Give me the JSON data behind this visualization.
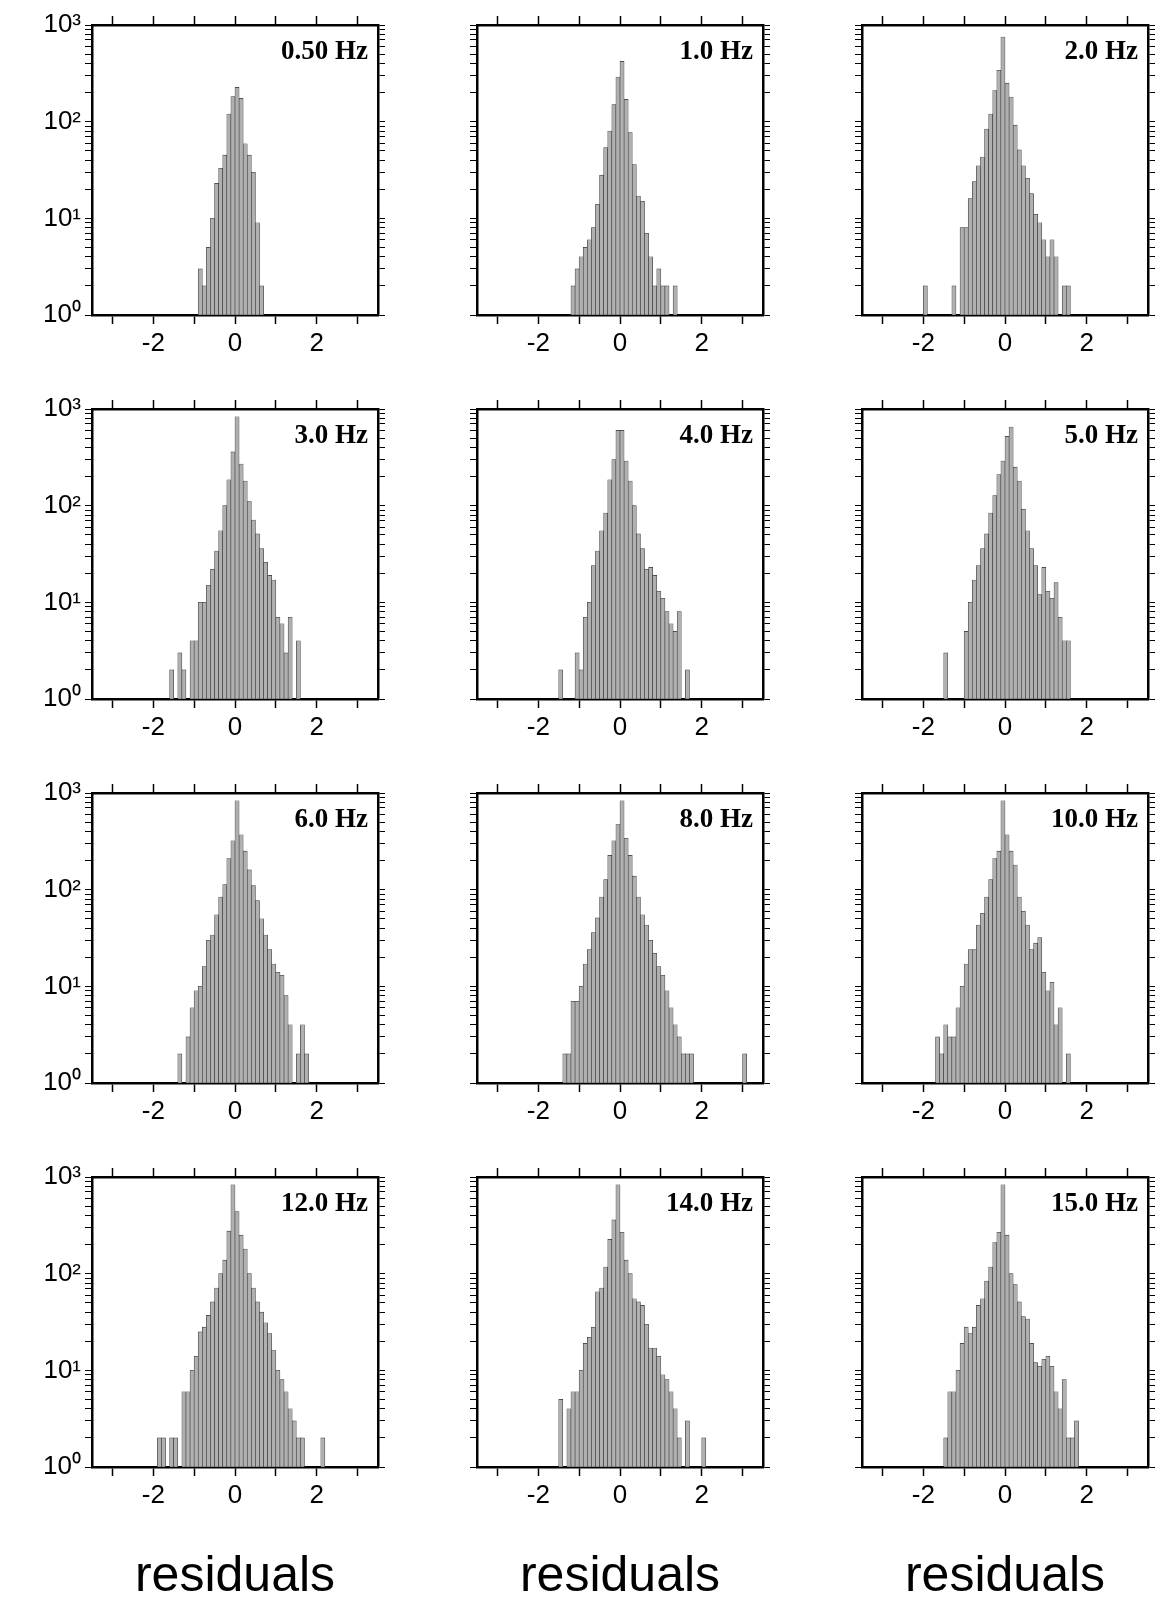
{
  "chart_data": [
    {
      "type": "histogram",
      "title": "0.50 Hz",
      "color": "#b0b0b0",
      "log": true,
      "xlim": [
        -3.5,
        3.5
      ],
      "ylim": [
        1,
        1000
      ],
      "xticks": [
        {
          "value": -3,
          "label": null
        },
        -2,
        {
          "value": -1,
          "label": null
        },
        0,
        {
          "value": 1,
          "label": null
        },
        2,
        {
          "value": 3,
          "label": null
        }
      ],
      "yticks": [
        {
          "value": 1,
          "label": "10⁰"
        },
        {
          "value": 2,
          "label": null
        },
        {
          "value": 3,
          "label": null
        },
        {
          "value": 4,
          "label": null
        },
        {
          "value": 5,
          "label": null
        },
        {
          "value": 6,
          "label": null
        },
        {
          "value": 7,
          "label": null
        },
        {
          "value": 8,
          "label": null
        },
        {
          "value": 9,
          "label": null
        },
        {
          "value": 10,
          "label": "10¹"
        },
        {
          "value": 20,
          "label": null
        },
        {
          "value": 30,
          "label": null
        },
        {
          "value": 40,
          "label": null
        },
        {
          "value": 50,
          "label": null
        },
        {
          "value": 60,
          "label": null
        },
        {
          "value": 70,
          "label": null
        },
        {
          "value": 80,
          "label": null
        },
        {
          "value": 90,
          "label": null
        },
        {
          "value": 100,
          "label": "10²"
        },
        {
          "value": 200,
          "label": null
        },
        {
          "value": 300,
          "label": null
        },
        {
          "value": 400,
          "label": null
        },
        {
          "value": 500,
          "label": null
        },
        {
          "value": 600,
          "label": null
        },
        {
          "value": 700,
          "label": null
        },
        {
          "value": 800,
          "label": null
        },
        {
          "value": 900,
          "label": null
        },
        {
          "value": 1000,
          "label": "10³"
        }
      ],
      "bins": [
        -0.9,
        -0.8,
        -0.7,
        -0.6,
        -0.5,
        -0.4,
        -0.3,
        -0.2,
        -0.1,
        0,
        0.1,
        0.2,
        0.3,
        0.4,
        0.5,
        0.6,
        0.7
      ],
      "values": [
        3,
        2,
        5,
        10,
        23,
        33,
        45,
        120,
        182,
        226,
        174,
        59,
        45,
        30,
        9,
        2
      ]
    },
    {
      "type": "histogram",
      "title": "1.0 Hz",
      "tick_labels": "x",
      "color": "#b0b0b0",
      "log": true,
      "xlim": [
        -3.5,
        3.5
      ],
      "ylim": [
        1,
        1000
      ],
      "xticks": [
        {
          "value": -3,
          "label": null
        },
        -2,
        {
          "value": -1,
          "label": null
        },
        0,
        {
          "value": 1,
          "label": null
        },
        2,
        {
          "value": 3,
          "label": null
        }
      ],
      "yticks": [
        1,
        2,
        3,
        4,
        5,
        6,
        7,
        8,
        9,
        10,
        20,
        30,
        40,
        50,
        60,
        70,
        80,
        90,
        100,
        200,
        300,
        400,
        500,
        600,
        700,
        800,
        900,
        1000
      ],
      "bins": [
        -1.2,
        -1.1,
        -1.0,
        -0.9,
        -0.8,
        -0.7,
        -0.6,
        -0.5,
        -0.4,
        -0.3,
        -0.2,
        -0.1,
        0,
        0.1,
        0.2,
        0.3,
        0.4,
        0.5,
        0.6,
        0.7,
        0.8,
        0.9,
        1.0,
        1.1,
        1.2,
        1.3,
        1.4
      ],
      "values": [
        2,
        3,
        4,
        5,
        6,
        8,
        14,
        28,
        54,
        80,
        150,
        290,
        420,
        170,
        77,
        36,
        17,
        15,
        7,
        4,
        2,
        3,
        2,
        2,
        null,
        2
      ]
    },
    {
      "type": "histogram",
      "title": "2.0 Hz",
      "tick_labels": "x",
      "color": "#b0b0b0",
      "log": true,
      "xlim": [
        -3.5,
        3.5
      ],
      "ylim": [
        1,
        1000
      ],
      "xticks": [
        {
          "value": -3,
          "label": null
        },
        -2,
        {
          "value": -1,
          "label": null
        },
        0,
        {
          "value": 1,
          "label": null
        },
        2,
        {
          "value": 3,
          "label": null
        }
      ],
      "yticks": [
        1,
        2,
        3,
        4,
        5,
        6,
        7,
        8,
        9,
        10,
        20,
        30,
        40,
        50,
        60,
        70,
        80,
        90,
        100,
        200,
        300,
        400,
        500,
        600,
        700,
        800,
        900,
        1000
      ],
      "bins": [
        -2.0,
        -1.9,
        -1.8,
        -1.7,
        -1.6,
        -1.5,
        -1.4,
        -1.3,
        -1.2,
        -1.1,
        -1.0,
        -0.9,
        -0.8,
        -0.7,
        -0.6,
        -0.5,
        -0.4,
        -0.3,
        -0.2,
        -0.1,
        0,
        0.1,
        0.2,
        0.3,
        0.4,
        0.5,
        0.6,
        0.7,
        0.8,
        0.9,
        1.0,
        1.1,
        1.2,
        1.3,
        1.4,
        1.5,
        1.6
      ],
      "values": [
        2,
        null,
        null,
        null,
        null,
        null,
        null,
        2,
        null,
        8,
        8,
        16,
        24,
        35,
        43,
        84,
        120,
        210,
        340,
        750,
        250,
        180,
        92,
        51,
        35,
        26,
        18,
        11,
        9,
        6,
        4,
        6,
        4,
        null,
        2,
        2
      ]
    },
    {
      "type": "histogram",
      "title": "3.0 Hz",
      "color": "#b0b0b0",
      "log": true,
      "xlim": [
        -3.5,
        3.5
      ],
      "ylim": [
        1,
        1000
      ],
      "xticks": [
        {
          "value": -3,
          "label": null
        },
        -2,
        {
          "value": -1,
          "label": null
        },
        0,
        {
          "value": 1,
          "label": null
        },
        2,
        {
          "value": 3,
          "label": null
        }
      ],
      "yticks": [
        {
          "value": 1,
          "label": "10⁰"
        },
        {
          "value": 2,
          "label": null
        },
        {
          "value": 3,
          "label": null
        },
        {
          "value": 4,
          "label": null
        },
        {
          "value": 5,
          "label": null
        },
        {
          "value": 6,
          "label": null
        },
        {
          "value": 7,
          "label": null
        },
        {
          "value": 8,
          "label": null
        },
        {
          "value": 9,
          "label": null
        },
        {
          "value": 10,
          "label": "10¹"
        },
        {
          "value": 20,
          "label": null
        },
        {
          "value": 30,
          "label": null
        },
        {
          "value": 40,
          "label": null
        },
        {
          "value": 50,
          "label": null
        },
        {
          "value": 60,
          "label": null
        },
        {
          "value": 70,
          "label": null
        },
        {
          "value": 80,
          "label": null
        },
        {
          "value": 90,
          "label": null
        },
        {
          "value": 100,
          "label": "10²"
        },
        {
          "value": 200,
          "label": null
        },
        {
          "value": 300,
          "label": null
        },
        {
          "value": 400,
          "label": null
        },
        {
          "value": 500,
          "label": null
        },
        {
          "value": 600,
          "label": null
        },
        {
          "value": 700,
          "label": null
        },
        {
          "value": 800,
          "label": null
        },
        {
          "value": 900,
          "label": null
        },
        {
          "value": 1000,
          "label": "10³"
        }
      ],
      "bins": [
        -1.6,
        -1.5,
        -1.4,
        -1.3,
        -1.2,
        -1.1,
        -1.0,
        -0.9,
        -0.8,
        -0.7,
        -0.6,
        -0.5,
        -0.4,
        -0.3,
        -0.2,
        -0.1,
        0,
        0.1,
        0.2,
        0.3,
        0.4,
        0.5,
        0.6,
        0.7,
        0.8,
        0.9,
        1.0,
        1.1,
        1.2,
        1.3,
        1.4,
        1.5,
        1.6
      ],
      "values": [
        2,
        null,
        3,
        2,
        null,
        4,
        4,
        10,
        10,
        15,
        22,
        34,
        55,
        100,
        185,
        360,
        830,
        270,
        180,
        110,
        71,
        51,
        36,
        26,
        19,
        17,
        7,
        6,
        3,
        7,
        null,
        4
      ]
    },
    {
      "type": "histogram",
      "title": "4.0 Hz",
      "tick_labels": "x",
      "color": "#b0b0b0",
      "log": true,
      "xlim": [
        -3.5,
        3.5
      ],
      "ylim": [
        1,
        1000
      ],
      "xticks": [
        {
          "value": -3,
          "label": null
        },
        -2,
        {
          "value": -1,
          "label": null
        },
        0,
        {
          "value": 1,
          "label": null
        },
        2,
        {
          "value": 3,
          "label": null
        }
      ],
      "yticks": [
        1,
        2,
        3,
        4,
        5,
        6,
        7,
        8,
        9,
        10,
        20,
        30,
        40,
        50,
        60,
        70,
        80,
        90,
        100,
        200,
        300,
        400,
        500,
        600,
        700,
        800,
        900,
        1000
      ],
      "bins": [
        -1.5,
        -1.4,
        -1.3,
        -1.2,
        -1.1,
        -1.0,
        -0.9,
        -0.8,
        -0.7,
        -0.6,
        -0.5,
        -0.4,
        -0.3,
        -0.2,
        -0.1,
        0,
        0.1,
        0.2,
        0.3,
        0.4,
        0.5,
        0.6,
        0.7,
        0.8,
        0.9,
        1.0,
        1.1,
        1.2,
        1.3,
        1.4,
        1.5,
        1.6,
        1.7
      ],
      "values": [
        2,
        null,
        null,
        null,
        3,
        2,
        7,
        10,
        24,
        34,
        55,
        84,
        185,
        300,
        600,
        600,
        290,
        180,
        100,
        51,
        36,
        22,
        23,
        19,
        13,
        11,
        8,
        6,
        5,
        8,
        null,
        2
      ]
    },
    {
      "type": "histogram",
      "title": "5.0 Hz",
      "tick_labels": "x",
      "color": "#b0b0b0",
      "log": true,
      "xlim": [
        -3.5,
        3.5
      ],
      "ylim": [
        1,
        1000
      ],
      "xticks": [
        {
          "value": -3,
          "label": null
        },
        -2,
        {
          "value": -1,
          "label": null
        },
        0,
        {
          "value": 1,
          "label": null
        },
        2,
        {
          "value": 3,
          "label": null
        }
      ],
      "yticks": [
        1,
        2,
        3,
        4,
        5,
        6,
        7,
        8,
        9,
        10,
        20,
        30,
        40,
        50,
        60,
        70,
        80,
        90,
        100,
        200,
        300,
        400,
        500,
        600,
        700,
        800,
        900,
        1000
      ],
      "bins": [
        -1.5,
        -1.4,
        -1.3,
        -1.2,
        -1.1,
        -1.0,
        -0.9,
        -0.8,
        -0.7,
        -0.6,
        -0.5,
        -0.4,
        -0.3,
        -0.2,
        -0.1,
        0,
        0.1,
        0.2,
        0.3,
        0.4,
        0.5,
        0.6,
        0.7,
        0.8,
        0.9,
        1.0,
        1.1,
        1.2,
        1.3,
        1.4,
        1.5,
        1.6
      ],
      "values": [
        3,
        null,
        null,
        null,
        null,
        5,
        10,
        17,
        24,
        36,
        51,
        84,
        127,
        210,
        290,
        520,
        650,
        250,
        180,
        92,
        55,
        36,
        24,
        12,
        23,
        13,
        11,
        16,
        7,
        4,
        4
      ]
    },
    {
      "type": "histogram",
      "title": "6.0 Hz",
      "color": "#b0b0b0",
      "log": true,
      "xlim": [
        -3.5,
        3.5
      ],
      "ylim": [
        1,
        1000
      ],
      "xticks": [
        {
          "value": -3,
          "label": null
        },
        -2,
        {
          "value": -1,
          "label": null
        },
        0,
        {
          "value": 1,
          "label": null
        },
        2,
        {
          "value": 3,
          "label": null
        }
      ],
      "yticks": [
        {
          "value": 1,
          "label": "10⁰"
        },
        {
          "value": 2,
          "label": null
        },
        {
          "value": 3,
          "label": null
        },
        {
          "value": 4,
          "label": null
        },
        {
          "value": 5,
          "label": null
        },
        {
          "value": 6,
          "label": null
        },
        {
          "value": 7,
          "label": null
        },
        {
          "value": 8,
          "label": null
        },
        {
          "value": 9,
          "label": null
        },
        {
          "value": 10,
          "label": "10¹"
        },
        {
          "value": 20,
          "label": null
        },
        {
          "value": 30,
          "label": null
        },
        {
          "value": 40,
          "label": null
        },
        {
          "value": 50,
          "label": null
        },
        {
          "value": 60,
          "label": null
        },
        {
          "value": 70,
          "label": null
        },
        {
          "value": 80,
          "label": null
        },
        {
          "value": 90,
          "label": null
        },
        {
          "value": 100,
          "label": "10²"
        },
        {
          "value": 200,
          "label": null
        },
        {
          "value": 300,
          "label": null
        },
        {
          "value": 400,
          "label": null
        },
        {
          "value": 500,
          "label": null
        },
        {
          "value": 600,
          "label": null
        },
        {
          "value": 700,
          "label": null
        },
        {
          "value": 800,
          "label": null
        },
        {
          "value": 900,
          "label": null
        },
        {
          "value": 1000,
          "label": "10³"
        }
      ],
      "bins": [
        -1.4,
        -1.3,
        -1.2,
        -1.1,
        -1.0,
        -0.9,
        -0.8,
        -0.7,
        -0.6,
        -0.5,
        -0.4,
        -0.3,
        -0.2,
        -0.1,
        0,
        0.1,
        0.2,
        0.3,
        0.4,
        0.5,
        0.6,
        0.7,
        0.8,
        0.9,
        1.0,
        1.1,
        1.2,
        1.3,
        1.4,
        1.5,
        1.6,
        1.7,
        1.8
      ],
      "values": [
        2,
        null,
        3,
        6,
        9,
        10,
        16,
        30,
        34,
        55,
        84,
        113,
        210,
        320,
        830,
        370,
        250,
        160,
        110,
        77,
        50,
        34,
        24,
        17,
        14,
        13,
        8,
        4,
        null,
        2,
        4,
        2
      ]
    },
    {
      "type": "histogram",
      "title": "8.0 Hz",
      "tick_labels": "x",
      "color": "#b0b0b0",
      "log": true,
      "xlim": [
        -3.5,
        3.5
      ],
      "ylim": [
        1,
        1000
      ],
      "xticks": [
        {
          "value": -3,
          "label": null
        },
        -2,
        {
          "value": -1,
          "label": null
        },
        0,
        {
          "value": 1,
          "label": null
        },
        2,
        {
          "value": 3,
          "label": null
        }
      ],
      "yticks": [
        1,
        2,
        3,
        4,
        5,
        6,
        7,
        8,
        9,
        10,
        20,
        30,
        40,
        50,
        60,
        70,
        80,
        90,
        100,
        200,
        300,
        400,
        500,
        600,
        700,
        800,
        900,
        1000
      ],
      "bins": [
        -1.4,
        -1.3,
        -1.2,
        -1.1,
        -1.0,
        -0.9,
        -0.8,
        -0.7,
        -0.6,
        -0.5,
        -0.4,
        -0.3,
        -0.2,
        -0.1,
        0,
        0.1,
        0.2,
        0.3,
        0.4,
        0.5,
        0.6,
        0.7,
        0.8,
        0.9,
        1.0,
        1.1,
        1.2,
        1.3,
        1.4,
        1.5,
        1.6,
        1.7,
        1.8,
        1.9,
        2.0,
        2.1,
        2.2,
        2.3,
        2.4,
        2.5,
        2.6,
        2.7,
        2.8,
        2.9,
        3.0,
        3.1
      ],
      "values": [
        2,
        2,
        7,
        7,
        10,
        17,
        24,
        36,
        51,
        84,
        127,
        226,
        320,
        470,
        830,
        340,
        226,
        138,
        84,
        55,
        43,
        30,
        22,
        16,
        13,
        9,
        6,
        4,
        3,
        2,
        2,
        2,
        null,
        null,
        null,
        null,
        null,
        null,
        null,
        null,
        null,
        null,
        null,
        null,
        2
      ]
    },
    {
      "type": "histogram",
      "title": "10.0 Hz",
      "tick_labels": "x",
      "color": "#b0b0b0",
      "log": true,
      "xlim": [
        -3.5,
        3.5
      ],
      "ylim": [
        1,
        1000
      ],
      "xticks": [
        {
          "value": -3,
          "label": null
        },
        -2,
        {
          "value": -1,
          "label": null
        },
        0,
        {
          "value": 1,
          "label": null
        },
        2,
        {
          "value": 3,
          "label": null
        }
      ],
      "yticks": [
        1,
        2,
        3,
        4,
        5,
        6,
        7,
        8,
        9,
        10,
        20,
        30,
        40,
        50,
        60,
        70,
        80,
        90,
        100,
        200,
        300,
        400,
        500,
        600,
        700,
        800,
        900,
        1000
      ],
      "bins": [
        -1.7,
        -1.6,
        -1.5,
        -1.4,
        -1.3,
        -1.2,
        -1.1,
        -1.0,
        -0.9,
        -0.8,
        -0.7,
        -0.6,
        -0.5,
        -0.4,
        -0.3,
        -0.2,
        -0.1,
        0,
        0.1,
        0.2,
        0.3,
        0.4,
        0.5,
        0.6,
        0.7,
        0.8,
        0.9,
        1.0,
        1.1,
        1.2,
        1.3,
        1.4,
        1.5,
        1.6
      ],
      "values": [
        3,
        2,
        4,
        3,
        3,
        6,
        10,
        17,
        24,
        24,
        43,
        57,
        84,
        127,
        210,
        250,
        830,
        370,
        250,
        180,
        84,
        60,
        43,
        24,
        28,
        32,
        14,
        9,
        11,
        4,
        6,
        null,
        2
      ]
    },
    {
      "type": "histogram",
      "title": "12.0 Hz",
      "xlabel": "residuals",
      "color": "#b0b0b0",
      "log": true,
      "xlim": [
        -3.5,
        3.5
      ],
      "ylim": [
        1,
        1000
      ],
      "xticks": [
        {
          "value": -3,
          "label": null
        },
        -2,
        {
          "value": -1,
          "label": null
        },
        0,
        {
          "value": 1,
          "label": null
        },
        2,
        {
          "value": 3,
          "label": null
        }
      ],
      "yticks": [
        {
          "value": 1,
          "label": "10⁰"
        },
        {
          "value": 2,
          "label": null
        },
        {
          "value": 3,
          "label": null
        },
        {
          "value": 4,
          "label": null
        },
        {
          "value": 5,
          "label": null
        },
        {
          "value": 6,
          "label": null
        },
        {
          "value": 7,
          "label": null
        },
        {
          "value": 8,
          "label": null
        },
        {
          "value": 9,
          "label": null
        },
        {
          "value": 10,
          "label": "10¹"
        },
        {
          "value": 20,
          "label": null
        },
        {
          "value": 30,
          "label": null
        },
        {
          "value": 40,
          "label": null
        },
        {
          "value": 50,
          "label": null
        },
        {
          "value": 60,
          "label": null
        },
        {
          "value": 70,
          "label": null
        },
        {
          "value": 80,
          "label": null
        },
        {
          "value": 90,
          "label": null
        },
        {
          "value": 100,
          "label": "10²"
        },
        {
          "value": 200,
          "label": null
        },
        {
          "value": 300,
          "label": null
        },
        {
          "value": 400,
          "label": null
        },
        {
          "value": 500,
          "label": null
        },
        {
          "value": 600,
          "label": null
        },
        {
          "value": 700,
          "label": null
        },
        {
          "value": 800,
          "label": null
        },
        {
          "value": 900,
          "label": null
        },
        {
          "value": 1000,
          "label": "10³"
        }
      ],
      "bins": [
        -1.9,
        -1.8,
        -1.7,
        -1.6,
        -1.5,
        -1.4,
        -1.3,
        -1.2,
        -1.1,
        -1.0,
        -0.9,
        -0.8,
        -0.7,
        -0.6,
        -0.5,
        -0.4,
        -0.3,
        -0.2,
        -0.1,
        0,
        0.1,
        0.2,
        0.3,
        0.4,
        0.5,
        0.6,
        0.7,
        0.8,
        0.9,
        1.0,
        1.1,
        1.2,
        1.3,
        1.4,
        1.5,
        1.6,
        1.7,
        1.8,
        1.9,
        2.0,
        2.1,
        2.2
      ],
      "values": [
        2,
        2,
        null,
        2,
        2,
        null,
        6,
        6,
        10,
        14,
        25,
        28,
        37,
        51,
        71,
        100,
        138,
        275,
        830,
        440,
        250,
        180,
        100,
        71,
        51,
        40,
        31,
        24,
        16,
        10,
        8,
        6,
        4,
        3,
        2,
        2,
        null,
        null,
        null,
        null,
        2
      ]
    },
    {
      "type": "histogram",
      "title": "14.0 Hz",
      "xlabel": "residuals",
      "tick_labels": "x",
      "color": "#b0b0b0",
      "log": true,
      "xlim": [
        -3.5,
        3.5
      ],
      "ylim": [
        1,
        1000
      ],
      "xticks": [
        {
          "value": -3,
          "label": null
        },
        -2,
        {
          "value": -1,
          "label": null
        },
        0,
        {
          "value": 1,
          "label": null
        },
        2,
        {
          "value": 3,
          "label": null
        }
      ],
      "yticks": [
        1,
        2,
        3,
        4,
        5,
        6,
        7,
        8,
        9,
        10,
        20,
        30,
        40,
        50,
        60,
        70,
        80,
        90,
        100,
        200,
        300,
        400,
        500,
        600,
        700,
        800,
        900,
        1000
      ],
      "bins": [
        -1.5,
        -1.4,
        -1.3,
        -1.2,
        -1.1,
        -1.0,
        -0.9,
        -0.8,
        -0.7,
        -0.6,
        -0.5,
        -0.4,
        -0.3,
        -0.2,
        -0.1,
        0,
        0.1,
        0.2,
        0.3,
        0.4,
        0.5,
        0.6,
        0.7,
        0.8,
        0.9,
        1.0,
        1.1,
        1.2,
        1.3,
        1.4,
        1.5,
        1.6,
        1.7,
        1.8,
        1.9,
        2.0,
        2.1
      ],
      "values": [
        5,
        null,
        4,
        6,
        6,
        10,
        19,
        22,
        28,
        65,
        71,
        117,
        226,
        360,
        830,
        268,
        138,
        100,
        55,
        51,
        47,
        30,
        17,
        17,
        14,
        9,
        8,
        6,
        4,
        2,
        null,
        3,
        null,
        null,
        null,
        2
      ]
    },
    {
      "type": "histogram",
      "title": "15.0 Hz",
      "xlabel": "residuals",
      "tick_labels": "x",
      "color": "#b0b0b0",
      "log": true,
      "xlim": [
        -3.5,
        3.5
      ],
      "ylim": [
        1,
        1000
      ],
      "xticks": [
        {
          "value": -3,
          "label": null
        },
        -2,
        {
          "value": -1,
          "label": null
        },
        0,
        {
          "value": 1,
          "label": null
        },
        2,
        {
          "value": 3,
          "label": null
        }
      ],
      "yticks": [
        1,
        2,
        3,
        4,
        5,
        6,
        7,
        8,
        9,
        10,
        20,
        30,
        40,
        50,
        60,
        70,
        80,
        90,
        100,
        200,
        300,
        400,
        500,
        600,
        700,
        800,
        900,
        1000
      ],
      "bins": [
        -1.5,
        -1.4,
        -1.3,
        -1.2,
        -1.1,
        -1.0,
        -0.9,
        -0.8,
        -0.7,
        -0.6,
        -0.5,
        -0.4,
        -0.3,
        -0.2,
        -0.1,
        0,
        0.1,
        0.2,
        0.3,
        0.4,
        0.5,
        0.6,
        0.7,
        0.8,
        0.9,
        1.0,
        1.1,
        1.2,
        1.3,
        1.4,
        1.5,
        1.6,
        1.7,
        1.8
      ],
      "values": [
        2,
        6,
        6,
        10,
        19,
        28,
        24,
        28,
        47,
        55,
        84,
        117,
        210,
        268,
        830,
        250,
        100,
        77,
        51,
        36,
        34,
        19,
        12,
        11,
        13,
        14,
        11,
        6,
        4,
        8,
        2,
        2,
        3
      ]
    }
  ]
}
